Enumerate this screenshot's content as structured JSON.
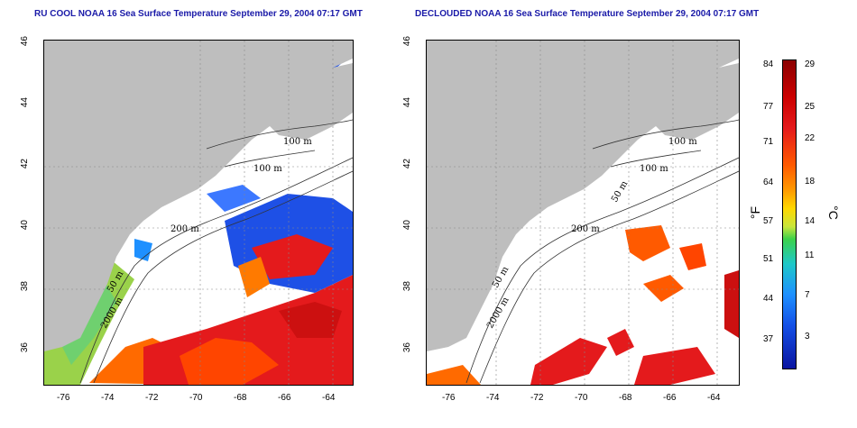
{
  "left_panel": {
    "title": "RU COOL NOAA 16 Sea Surface Temperature September 29, 2004 07:17 GMT",
    "contour_labels": [
      "100 m",
      "100 m",
      "200 m",
      "50 m",
      "2000 m"
    ]
  },
  "right_panel": {
    "title": "DECLOUDED NOAA 16 Sea Surface Temperature September 29, 2004 07:17 GMT",
    "contour_labels": [
      "100 m",
      "100 m",
      "50 m",
      "200 m",
      "50 m",
      "2000 m"
    ]
  },
  "axes": {
    "left_lon_ticks": [
      "-76",
      "-74",
      "-72",
      "-70",
      "-68",
      "-66",
      "-64"
    ],
    "right_lon_ticks": [
      "-76",
      "-74",
      "-72",
      "-70",
      "-68",
      "-66",
      "-64"
    ],
    "lat_ticks": [
      "46",
      "44",
      "42",
      "40",
      "38",
      "36"
    ]
  },
  "colorbar": {
    "f_label": "°F",
    "c_label": "°C",
    "f_ticks": [
      "84",
      "77",
      "71",
      "64",
      "57",
      "51",
      "44",
      "37"
    ],
    "c_ticks": [
      "29",
      "25",
      "22",
      "18",
      "14",
      "11",
      "7",
      "3"
    ]
  },
  "colors": {
    "land": "#bebebe",
    "title": "#1a1aa8",
    "warm": "#e41a1c",
    "cool": "#1e50e6"
  }
}
